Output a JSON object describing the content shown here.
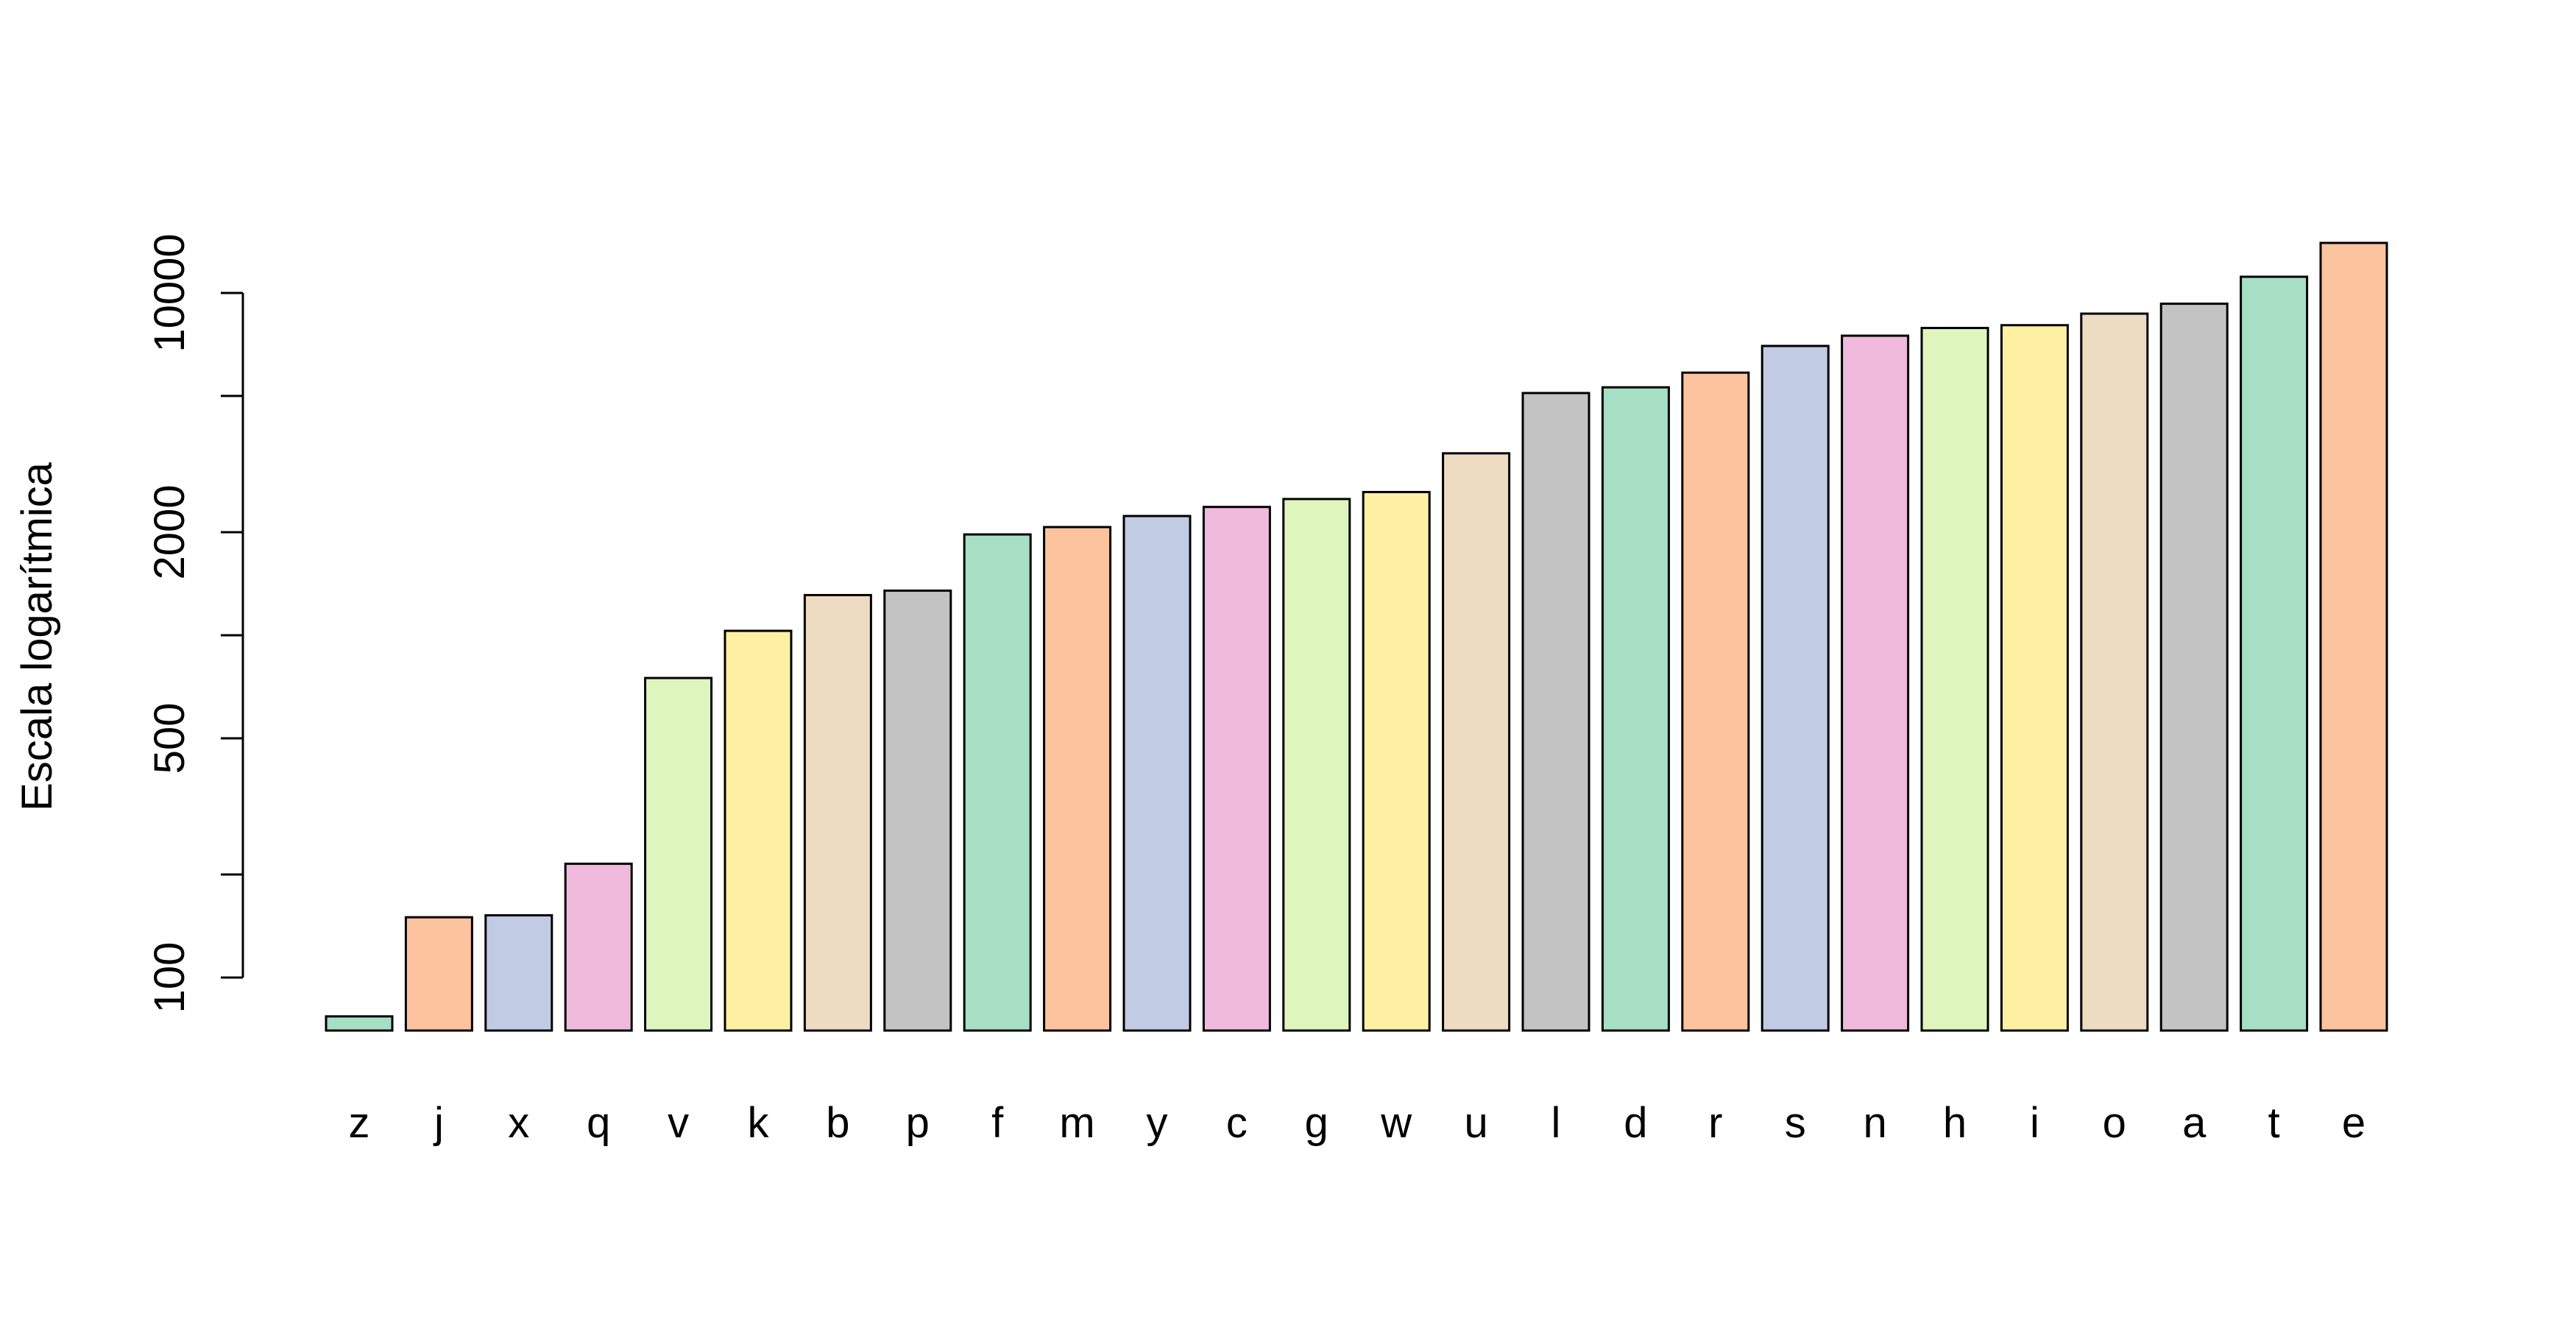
{
  "chart_data": {
    "type": "bar",
    "title": "",
    "xlabel": "",
    "ylabel": "Escala logarítmica",
    "y_scale": "log",
    "grid": false,
    "legend": "none",
    "yticks": [
      100,
      200,
      500,
      1000,
      2000,
      5000,
      10000
    ],
    "ytick_labels": [
      "100",
      "",
      "500",
      "",
      "2000",
      "",
      "10000"
    ],
    "ylim": [
      70,
      14000
    ],
    "categories": [
      "z",
      "j",
      "x",
      "q",
      "v",
      "k",
      "b",
      "p",
      "f",
      "m",
      "y",
      "c",
      "g",
      "w",
      "u",
      "l",
      "d",
      "r",
      "s",
      "n",
      "h",
      "i",
      "o",
      "a",
      "t",
      "e"
    ],
    "values": [
      77,
      150,
      152,
      215,
      750,
      1030,
      1310,
      1350,
      1970,
      2070,
      2230,
      2370,
      2500,
      2620,
      3400,
      5100,
      5300,
      5850,
      7000,
      7500,
      7900,
      8050,
      8700,
      9300,
      11150,
      14000
    ],
    "colors": [
      "#A6DFC4",
      "#FBC49E",
      "#C1CBE3",
      "#EFBADB",
      "#DFF5BE",
      "#FEF0A2",
      "#EDDCC2",
      "#C3C3C3",
      "#A6DFC4",
      "#FBC49E",
      "#C1CBE3",
      "#EFBADB",
      "#DFF5BE",
      "#FEF0A2",
      "#EDDCC2",
      "#C3C3C3",
      "#A6DFC4",
      "#FBC49E",
      "#C1CBE3",
      "#EFBADB",
      "#DFF5BE",
      "#FEF0A2",
      "#EDDCC2",
      "#C3C3C3",
      "#A6DFC4",
      "#FBC49E"
    ]
  }
}
